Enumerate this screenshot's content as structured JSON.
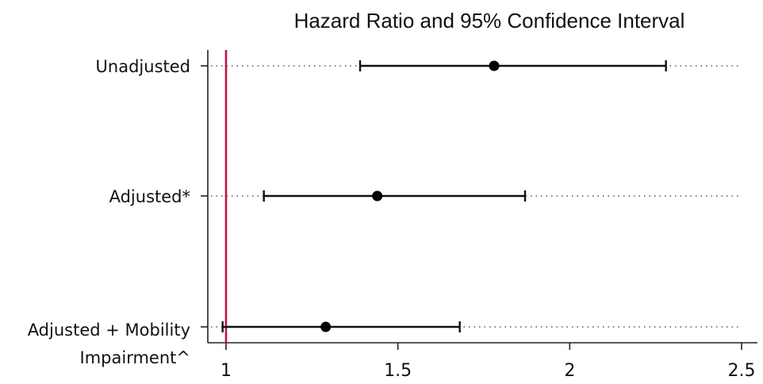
{
  "chart_data": {
    "type": "forest",
    "title": "Hazard Ratio and 95% Confidence Interval",
    "categories": [
      [
        "Unadjusted"
      ],
      [
        "Adjusted*"
      ],
      [
        "Adjusted + Mobility",
        "Impairment^"
      ]
    ],
    "estimates": [
      1.78,
      1.44,
      1.29
    ],
    "ci_lower": [
      1.39,
      1.11,
      0.99
    ],
    "ci_upper": [
      2.28,
      1.87,
      1.68
    ],
    "xlim": [
      0.95,
      2.5
    ],
    "xticks": [
      1,
      1.5,
      2,
      2.5
    ],
    "xtick_labels": [
      "1",
      "1.5",
      "2",
      "2.5"
    ],
    "reference_line": 1,
    "reference_color": "#c8103e",
    "grid": "dotted row lines",
    "legend": "none"
  }
}
